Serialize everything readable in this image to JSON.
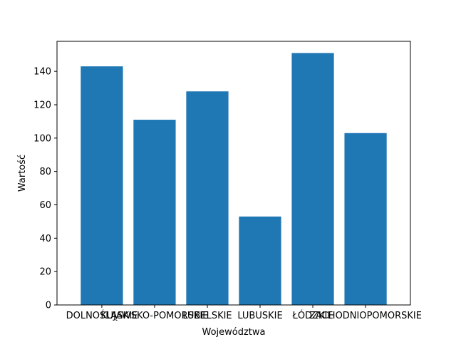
{
  "chart_data": {
    "type": "bar",
    "title": "",
    "xlabel": "Województwa",
    "ylabel": "Wartość",
    "categories": [
      "DOLNOŚLĄSKIE",
      "KUJAWSKO-POMORSKIE",
      "LUBELSKIE",
      "LUBUSKIE",
      "ŁÓDZKIE",
      "ZACHODNIOPOMORSKIE"
    ],
    "values": [
      143,
      111,
      128,
      53,
      151,
      103
    ],
    "ylim": [
      0,
      158
    ],
    "yticks": [
      0,
      20,
      40,
      60,
      80,
      100,
      120,
      140
    ],
    "grid": false,
    "legend": "none",
    "bar_color": "#1f77b4"
  }
}
